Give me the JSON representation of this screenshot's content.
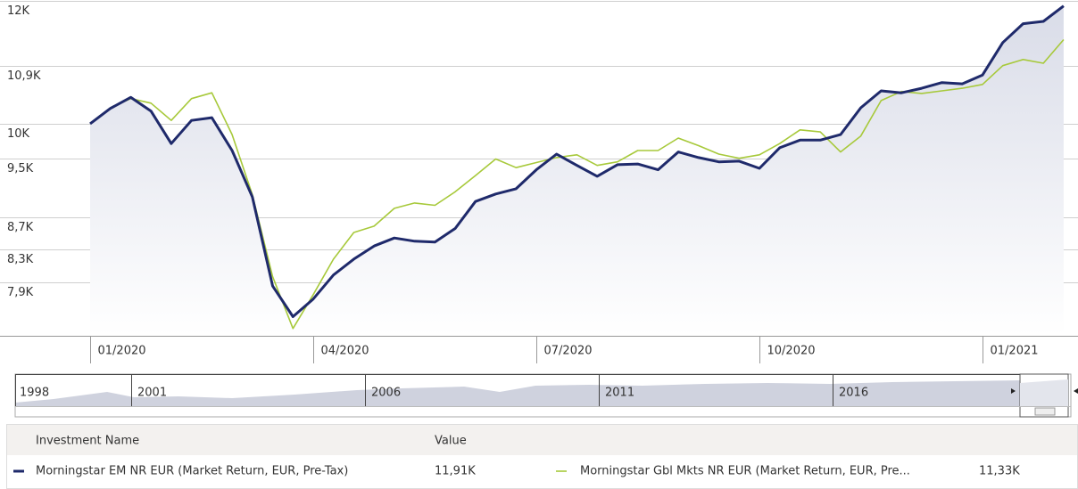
{
  "chart_data": {
    "type": "line",
    "log_scale": true,
    "grid": true,
    "categories": [
      "01/2020",
      null,
      null,
      null,
      null,
      null,
      null,
      null,
      null,
      null,
      null,
      "04/2020",
      null,
      null,
      null,
      null,
      null,
      null,
      null,
      null,
      null,
      null,
      "07/2020",
      null,
      null,
      null,
      null,
      null,
      null,
      null,
      null,
      null,
      null,
      "10/2020",
      null,
      null,
      null,
      null,
      null,
      null,
      null,
      null,
      null,
      null,
      "01/2021",
      null,
      null,
      null,
      null
    ],
    "ylim": [
      7300,
      12000
    ],
    "yticks": [
      {
        "value": 12000,
        "label": "12K"
      },
      {
        "value": 10900,
        "label": "10,9K"
      },
      {
        "value": 10000,
        "label": "10K"
      },
      {
        "value": 9500,
        "label": "9,5K"
      },
      {
        "value": 8700,
        "label": "8,7K"
      },
      {
        "value": 8300,
        "label": "8,3K"
      },
      {
        "value": 7900,
        "label": "7,9K"
      }
    ],
    "series": [
      {
        "name": "Morningstar EM NR EUR (Market Return, EUR, Pre-Tax)",
        "color": "#1f2a6b",
        "values": [
          10000,
          10230,
          10400,
          10190,
          9710,
          10050,
          10090,
          9610,
          8970,
          7860,
          7510,
          7710,
          7990,
          8180,
          8340,
          8440,
          8400,
          8390,
          8560,
          8910,
          9010,
          9080,
          9340,
          9560,
          9400,
          9250,
          9410,
          9420,
          9340,
          9590,
          9510,
          9450,
          9460,
          9360,
          9650,
          9760,
          9760,
          9840,
          10240,
          10500,
          10470,
          10540,
          10630,
          10610,
          10750,
          11280,
          11600,
          11640,
          11910
        ],
        "value_labels": [
          null,
          null,
          null,
          null,
          null,
          null,
          null,
          null,
          null,
          null,
          null,
          null,
          null,
          null,
          null,
          null,
          null,
          null,
          null,
          null,
          null,
          null,
          null,
          null,
          null,
          null,
          null,
          null,
          null,
          null,
          null,
          null,
          null,
          null,
          null,
          null,
          null,
          null,
          null,
          null,
          null,
          null,
          null,
          null,
          null,
          null,
          null,
          null,
          "11,91K"
        ]
      },
      {
        "name": "Morningstar Gbl Mkts NR EUR (Market Return, EUR, Pre...",
        "color": "#a7c93a",
        "values": [
          10000,
          10240,
          10380,
          10310,
          10050,
          10380,
          10470,
          9840,
          9000,
          7970,
          7380,
          7760,
          8180,
          8510,
          8590,
          8820,
          8890,
          8860,
          9040,
          9260,
          9490,
          9370,
          9440,
          9510,
          9550,
          9400,
          9450,
          9610,
          9610,
          9790,
          9680,
          9560,
          9500,
          9550,
          9710,
          9910,
          9880,
          9590,
          9820,
          10350,
          10490,
          10460,
          10500,
          10540,
          10600,
          10900,
          11000,
          10940,
          11330
        ],
        "value_labels": [
          null,
          null,
          null,
          null,
          null,
          null,
          null,
          null,
          null,
          null,
          null,
          null,
          null,
          null,
          null,
          null,
          null,
          null,
          null,
          null,
          null,
          null,
          null,
          null,
          null,
          null,
          null,
          null,
          null,
          null,
          null,
          null,
          null,
          null,
          null,
          null,
          null,
          null,
          null,
          null,
          null,
          null,
          null,
          null,
          null,
          null,
          null,
          null,
          "11,33K"
        ]
      }
    ]
  },
  "navigator": {
    "labels": [
      "1998",
      "2001",
      "2006",
      "2011",
      "2016"
    ]
  },
  "table": {
    "headers": [
      "Investment Name",
      "Value"
    ]
  }
}
